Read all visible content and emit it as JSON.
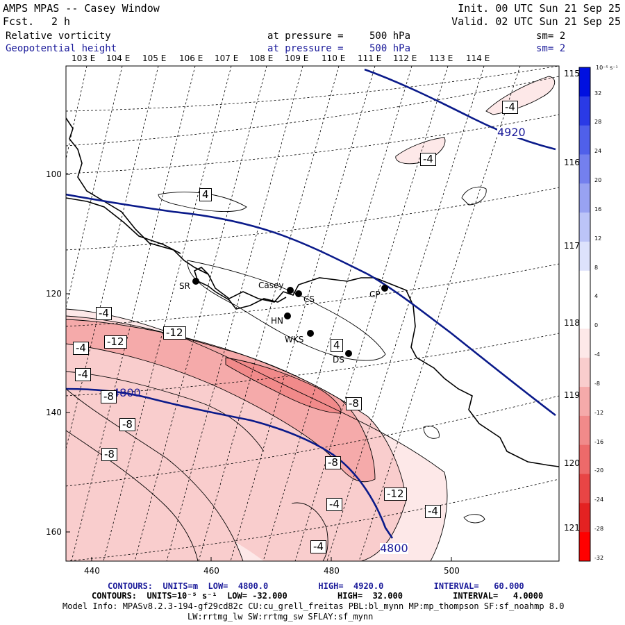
{
  "header": {
    "title": "AMPS MPAS -- Casey Window",
    "fcst_label": "Fcst.",
    "fcst_value": "2 h",
    "init": "Init. 00 UTC Sun 21 Sep 25",
    "valid": "Valid. 02 UTC Sun 21 Sep 25",
    "field1": {
      "name": "Relative vorticity",
      "level_label": "at pressure =",
      "level": "500 hPa",
      "sm": "sm= 2"
    },
    "field2": {
      "name": "Geopotential height",
      "level_label": "at pressure =",
      "level": "500 hPa",
      "sm": "sm= 2"
    }
  },
  "map": {
    "lon_labels_top": [
      "103 E",
      "104 E",
      "105 E",
      "106 E",
      "107 E",
      "108 E",
      "109 E",
      "110 E",
      "111 E",
      "112 E",
      "113 E",
      "114 E"
    ],
    "lon_labels_right": [
      "115 E",
      "116 E",
      "117 E",
      "118 E",
      "119 E",
      "120 E",
      "121 E"
    ],
    "y_ticks": [
      "100",
      "120",
      "140",
      "160"
    ],
    "x_ticks": [
      "440",
      "460",
      "480",
      "500"
    ],
    "stations": [
      "SR",
      "Casey",
      "CS",
      "CP",
      "HN",
      "WKS",
      "DS"
    ],
    "height_contour_labels": [
      "4920",
      "4800",
      "4800"
    ],
    "vort_contour_labels": [
      "-4",
      "-4",
      "4",
      "-4",
      "-12",
      "-12",
      "-4",
      "-4",
      "-8",
      "-8",
      "-8",
      "-8",
      "-12",
      "-8",
      "-4",
      "-4",
      "-4",
      "4"
    ]
  },
  "colorbar": {
    "unit": "10⁻⁵ s⁻¹",
    "ticks": [
      "32",
      "28",
      "24",
      "20",
      "16",
      "12",
      "8",
      "4",
      "0",
      "-4",
      "-8",
      "-12",
      "-16",
      "-20",
      "-24",
      "-28",
      "-32"
    ],
    "colors": [
      "#0010e0",
      "#2a3ae6",
      "#5060ea",
      "#7480ee",
      "#98a2f2",
      "#bcc4f8",
      "#dde2fc",
      "#ffffff",
      "#ffffff",
      "#fde8e8",
      "#f9cdcd",
      "#f5aaaa",
      "#f18a8a",
      "#ed6a6a",
      "#e84545",
      "#e42222",
      "#ff0000"
    ]
  },
  "footer": {
    "line1": "CONTOURS:  UNITS=m  LOW=  4800.0          HIGH=  4920.0          INTERVAL=   60.000",
    "line2": "CONTOURS:  UNITS=10⁻⁵ s⁻¹  LOW= -32.000          HIGH=  32.000          INTERVAL=   4.0000",
    "line3": "Model Info: MPASv8.2.3-194-gf29cd82c CU:cu_grell_freitas PBL:bl_mynn MP:mp_thompson SF:sf_noahmp 8.0",
    "line4": "LW:rrtmg_lw SW:rrtmg_sw SFLAY:sf_mynn"
  }
}
